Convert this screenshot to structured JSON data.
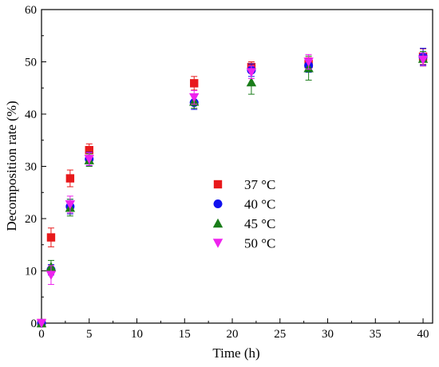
{
  "chart_data": {
    "type": "scatter",
    "title": "",
    "xlabel": "Time (h)",
    "ylabel": "Decomposition rate (%)",
    "xlim": [
      0,
      41
    ],
    "ylim": [
      0,
      60
    ],
    "xticks": [
      0,
      5,
      10,
      15,
      20,
      25,
      30,
      35,
      40
    ],
    "yticks": [
      0,
      10,
      20,
      30,
      40,
      50,
      60
    ],
    "grid": false,
    "legend_position": "center",
    "series": [
      {
        "name": "37 °C",
        "marker": "square",
        "color": "#e8191b",
        "x": [
          0,
          1,
          3,
          5,
          16,
          22,
          28,
          40
        ],
        "y": [
          0,
          16.4,
          27.7,
          33.1,
          45.9,
          49.0,
          49.6,
          51.0
        ],
        "err": [
          0,
          1.8,
          1.6,
          1.2,
          1.3,
          1.0,
          1.2,
          1.5
        ]
      },
      {
        "name": "40 °C",
        "marker": "circle",
        "color": "#1111ee",
        "x": [
          0,
          1,
          3,
          5,
          16,
          22,
          28,
          40
        ],
        "y": [
          0,
          10.2,
          22.3,
          31.4,
          42.2,
          48.4,
          49.3,
          51.0
        ],
        "err": [
          0,
          1.0,
          1.4,
          1.3,
          1.3,
          1.2,
          1.3,
          1.6
        ]
      },
      {
        "name": "45 °C",
        "marker": "triangle-up",
        "color": "#1a7d1a",
        "x": [
          0,
          1,
          3,
          5,
          16,
          22,
          28,
          40
        ],
        "y": [
          0,
          10.8,
          22.1,
          31.2,
          42.4,
          46.1,
          48.8,
          50.6
        ],
        "err": [
          0,
          1.2,
          1.6,
          1.2,
          1.3,
          2.3,
          2.3,
          1.4
        ]
      },
      {
        "name": "50 °C",
        "marker": "triangle-down",
        "color": "#ee22ee",
        "x": [
          0,
          1,
          3,
          5,
          16,
          22,
          28,
          40
        ],
        "y": [
          0,
          9.2,
          22.7,
          31.4,
          43.2,
          48.0,
          50.0,
          50.4
        ],
        "err": [
          0,
          1.8,
          1.6,
          1.2,
          1.3,
          1.2,
          1.4,
          1.2
        ]
      }
    ]
  }
}
